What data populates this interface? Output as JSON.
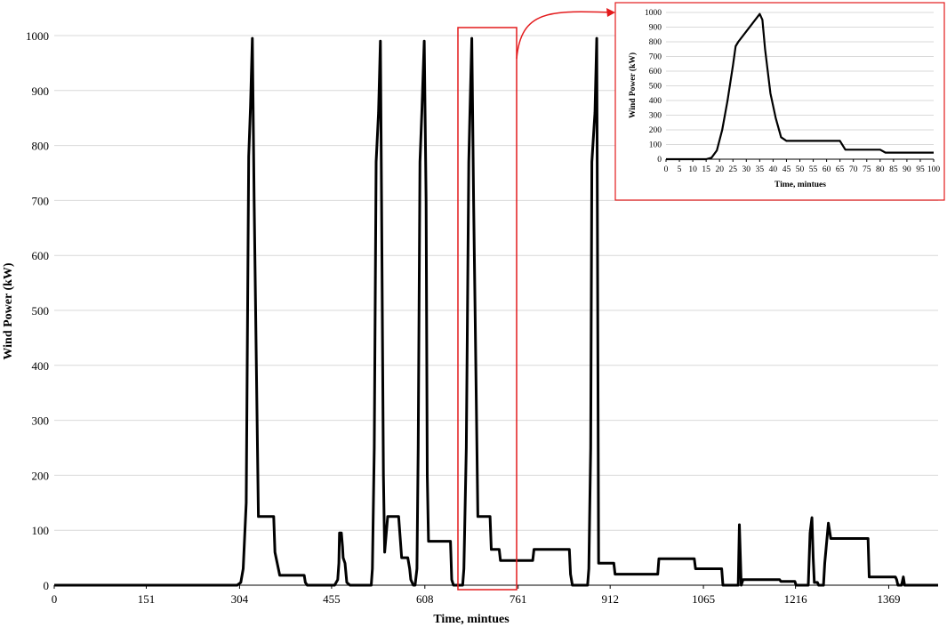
{
  "chart_data": [
    {
      "type": "line",
      "xlabel": "Time, mintues",
      "ylabel": "Wind Power (kW)",
      "xlim": [
        0,
        1450
      ],
      "ylim": [
        0,
        1000
      ],
      "xticks": [
        0,
        151,
        304,
        455,
        608,
        761,
        912,
        1065,
        1216,
        1369
      ],
      "yticks": [
        0,
        100,
        200,
        300,
        400,
        500,
        600,
        700,
        800,
        900,
        1000
      ],
      "grid": "horizontal",
      "series": [
        {
          "color": "#000000",
          "x": [
            0,
            300,
            306,
            310,
            315,
            319,
            322,
            325,
            328,
            335,
            360,
            362,
            370,
            410,
            412,
            415,
            460,
            465,
            467,
            468,
            471,
            473,
            474,
            477,
            480,
            485,
            520,
            522,
            525,
            528,
            532,
            535,
            537,
            540,
            542,
            547,
            550,
            552,
            555,
            565,
            570,
            580,
            583,
            585,
            589,
            592,
            595,
            597,
            600,
            603,
            607,
            610,
            612,
            614,
            618,
            650,
            652,
            655,
            660,
            670,
            672,
            676,
            680,
            682,
            685,
            688,
            695,
            715,
            717,
            720,
            730,
            732,
            735,
            785,
            787,
            790,
            845,
            847,
            850,
            870,
            875,
            877,
            880,
            882,
            887,
            890,
            893,
            918,
            920,
            925,
            990,
            992,
            995,
            1050,
            1052,
            1055,
            1095,
            1097,
            1100,
            1122,
            1124,
            1127,
            1130,
            1133,
            1190,
            1192,
            1195,
            1215,
            1217,
            1220,
            1237,
            1240,
            1243,
            1245,
            1247,
            1252,
            1254,
            1256,
            1262,
            1264,
            1270,
            1274,
            1276,
            1279,
            1280,
            1282,
            1285,
            1290,
            1335,
            1337,
            1340,
            1380,
            1382,
            1384,
            1390,
            1393,
            1395,
            1400,
            1403,
            1405,
            1450
          ],
          "y": [
            0,
            0,
            5,
            30,
            150,
            780,
            870,
            995,
            700,
            125,
            125,
            60,
            18,
            18,
            5,
            0,
            0,
            10,
            40,
            95,
            95,
            70,
            50,
            40,
            5,
            0,
            0,
            30,
            250,
            770,
            860,
            990,
            700,
            200,
            60,
            125,
            125,
            125,
            125,
            125,
            50,
            50,
            30,
            10,
            0,
            0,
            30,
            250,
            770,
            860,
            990,
            700,
            200,
            80,
            80,
            80,
            10,
            0,
            0,
            0,
            30,
            250,
            770,
            860,
            995,
            700,
            125,
            125,
            65,
            65,
            65,
            45,
            45,
            45,
            65,
            65,
            65,
            20,
            0,
            0,
            0,
            30,
            250,
            770,
            860,
            995,
            40,
            40,
            20,
            20,
            20,
            48,
            48,
            48,
            30,
            30,
            30,
            0,
            0,
            0,
            110,
            0,
            10,
            10,
            10,
            7,
            7,
            7,
            0,
            0,
            0,
            95,
            123,
            50,
            5,
            5,
            0,
            0,
            0,
            40,
            113,
            85,
            85,
            85,
            85,
            85,
            85,
            85,
            85,
            15,
            15,
            15,
            10,
            0,
            0,
            15,
            0,
            0,
            0,
            0,
            0
          ]
        }
      ]
    },
    {
      "type": "line",
      "xlabel": "Time, mintues",
      "ylabel": "Wind Power (kW)",
      "xlim": [
        0,
        100
      ],
      "ylim": [
        0,
        1000
      ],
      "xticks": [
        0,
        5,
        10,
        15,
        20,
        25,
        30,
        35,
        40,
        45,
        50,
        55,
        60,
        65,
        70,
        75,
        80,
        85,
        90,
        95,
        100
      ],
      "yticks": [
        0,
        100,
        200,
        300,
        400,
        500,
        600,
        700,
        800,
        900,
        1000
      ],
      "grid": "horizontal",
      "series": [
        {
          "color": "#000000",
          "x": [
            0,
            15,
            17,
            19,
            21,
            23,
            25,
            26,
            27,
            35,
            36,
            37,
            39,
            41,
            43,
            45,
            65,
            67,
            80,
            82,
            100
          ],
          "y": [
            0,
            0,
            10,
            60,
            200,
            400,
            640,
            770,
            800,
            990,
            950,
            750,
            450,
            280,
            150,
            125,
            125,
            65,
            65,
            45,
            45
          ]
        }
      ]
    }
  ],
  "colors": {
    "line": "#000000",
    "grid": "#d9d9d9",
    "highlight": "#e31a1c"
  }
}
